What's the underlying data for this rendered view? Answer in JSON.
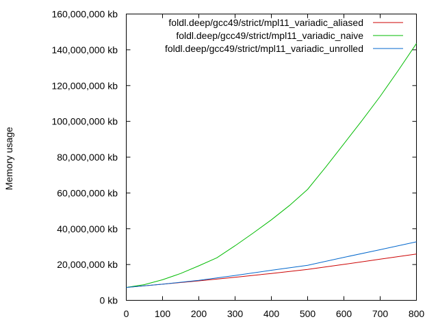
{
  "chart_data": {
    "type": "line",
    "title": "",
    "xlabel": "",
    "ylabel": "Memory usage",
    "xlim": [
      0,
      800
    ],
    "ylim": [
      0,
      160000000
    ],
    "x_ticks": [
      0,
      100,
      200,
      300,
      400,
      500,
      600,
      700,
      800
    ],
    "x_tick_labels": [
      "0",
      "100",
      "200",
      "300",
      "400",
      "500",
      "600",
      "700",
      "800"
    ],
    "y_ticks": [
      0,
      20000000,
      40000000,
      60000000,
      80000000,
      100000000,
      120000000,
      140000000,
      160000000
    ],
    "y_tick_labels": [
      "0 kb",
      "20,000,000 kb",
      "40,000,000 kb",
      "60,000,000 kb",
      "80,000,000 kb",
      "100,000,000 kb",
      "120,000,000 kb",
      "140,000,000 kb",
      "160,000,000 kb"
    ],
    "grid": false,
    "legend_position": "top-right",
    "series": [
      {
        "name": "foldl.deep/gcc49/strict/mpl11_variadic_aliased",
        "color": "#cc0000",
        "x": [
          0,
          100,
          200,
          300,
          400,
          500,
          600,
          700,
          800
        ],
        "y": [
          7200000,
          9000000,
          10900000,
          12900000,
          15000000,
          17300000,
          20100000,
          23000000,
          25900000
        ]
      },
      {
        "name": "foldl.deep/gcc49/strict/mpl11_variadic_naive",
        "color": "#00bb00",
        "x": [
          0,
          50,
          100,
          150,
          200,
          250,
          300,
          350,
          400,
          450,
          500,
          550,
          600,
          650,
          700,
          750,
          800
        ],
        "y": [
          7200000,
          8800000,
          11500000,
          15000000,
          19300000,
          23800000,
          30500000,
          37600000,
          45000000,
          53000000,
          62000000,
          74500000,
          87500000,
          100500000,
          114000000,
          128500000,
          143500000
        ]
      },
      {
        "name": "foldl.deep/gcc49/strict/mpl11_variadic_unrolled",
        "color": "#0066cc",
        "x": [
          0,
          100,
          200,
          300,
          400,
          500,
          600,
          700,
          800
        ],
        "y": [
          7200000,
          9000000,
          11200000,
          13900000,
          16800000,
          19600000,
          24000000,
          28300000,
          32700000
        ]
      }
    ]
  }
}
